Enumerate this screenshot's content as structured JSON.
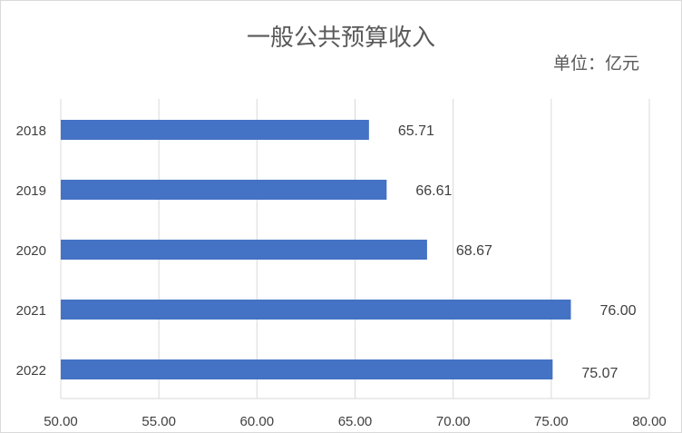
{
  "chart_data": {
    "type": "bar",
    "orientation": "horizontal",
    "title": "一般公共预算收入",
    "unit": "单位：亿元",
    "categories": [
      "2018",
      "2019",
      "2020",
      "2021",
      "2022"
    ],
    "series": [
      {
        "values": [
          65.71,
          66.61,
          68.67,
          76.0,
          75.07
        ],
        "labels": [
          "65.71",
          "66.61",
          "68.67",
          "76.00",
          "75.07"
        ],
        "color": "#4472C4"
      }
    ],
    "xlim": [
      50,
      80
    ],
    "xticks": [
      50,
      55,
      60,
      65,
      70,
      75,
      80
    ],
    "xtick_labels": [
      "50.00",
      "55.00",
      "60.00",
      "65.00",
      "70.00",
      "75.00",
      "80.00"
    ],
    "grid": true,
    "legend": "none"
  }
}
